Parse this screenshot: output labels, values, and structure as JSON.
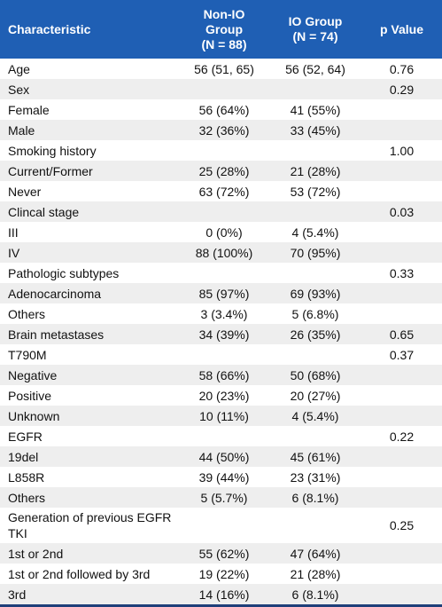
{
  "header": {
    "characteristic": "Characteristic",
    "nonio_line1": "Non-IO",
    "nonio_line2": "Group",
    "nonio_line3": "(N = 88)",
    "io_line1": "IO Group",
    "io_line2": "(N = 74)",
    "pvalue": "p Value"
  },
  "rows": [
    {
      "characteristic": "Age",
      "nonio": "56 (51, 65)",
      "io": "56 (52, 64)",
      "p": "0.76"
    },
    {
      "characteristic": "Sex",
      "nonio": "",
      "io": "",
      "p": "0.29"
    },
    {
      "characteristic": "Female",
      "nonio": "56 (64%)",
      "io": "41 (55%)",
      "p": ""
    },
    {
      "characteristic": "Male",
      "nonio": "32 (36%)",
      "io": "33 (45%)",
      "p": ""
    },
    {
      "characteristic": "Smoking history",
      "nonio": "",
      "io": "",
      "p": "1.00"
    },
    {
      "characteristic": "Current/Former",
      "nonio": "25 (28%)",
      "io": "21 (28%)",
      "p": ""
    },
    {
      "characteristic": "Never",
      "nonio": "63 (72%)",
      "io": "53 (72%)",
      "p": ""
    },
    {
      "characteristic": "Clincal stage",
      "nonio": "",
      "io": "",
      "p": "0.03"
    },
    {
      "characteristic": "III",
      "nonio": "0 (0%)",
      "io": "4 (5.4%)",
      "p": ""
    },
    {
      "characteristic": "IV",
      "nonio": "88 (100%)",
      "io": "70 (95%)",
      "p": ""
    },
    {
      "characteristic": "Pathologic subtypes",
      "nonio": "",
      "io": "",
      "p": "0.33"
    },
    {
      "characteristic": "Adenocarcinoma",
      "nonio": "85 (97%)",
      "io": "69 (93%)",
      "p": ""
    },
    {
      "characteristic": "Others",
      "nonio": "3 (3.4%)",
      "io": "5 (6.8%)",
      "p": ""
    },
    {
      "characteristic": "Brain metastases",
      "nonio": "34 (39%)",
      "io": "26 (35%)",
      "p": "0.65"
    },
    {
      "characteristic": "T790M",
      "nonio": "",
      "io": "",
      "p": "0.37"
    },
    {
      "characteristic": "Negative",
      "nonio": "58 (66%)",
      "io": "50 (68%)",
      "p": ""
    },
    {
      "characteristic": "Positive",
      "nonio": "20 (23%)",
      "io": "20 (27%)",
      "p": ""
    },
    {
      "characteristic": "Unknown",
      "nonio": "10 (11%)",
      "io": "4 (5.4%)",
      "p": ""
    },
    {
      "characteristic": "EGFR",
      "nonio": "",
      "io": "",
      "p": "0.22"
    },
    {
      "characteristic": "19del",
      "nonio": "44 (50%)",
      "io": "45 (61%)",
      "p": ""
    },
    {
      "characteristic": "L858R",
      "nonio": "39 (44%)",
      "io": "23 (31%)",
      "p": ""
    },
    {
      "characteristic": "Others",
      "nonio": "5 (5.7%)",
      "io": "6 (8.1%)",
      "p": ""
    },
    {
      "characteristic": "Generation of previous EGFR TKI",
      "nonio": "",
      "io": "",
      "p": "0.25"
    },
    {
      "characteristic": "1st or 2nd",
      "nonio": "55 (62%)",
      "io": "47 (64%)",
      "p": ""
    },
    {
      "characteristic": "1st or 2nd followed by 3rd",
      "nonio": "19 (22%)",
      "io": "21 (28%)",
      "p": ""
    },
    {
      "characteristic": "3rd",
      "nonio": "14 (16%)",
      "io": "6 (8.1%)",
      "p": ""
    }
  ]
}
